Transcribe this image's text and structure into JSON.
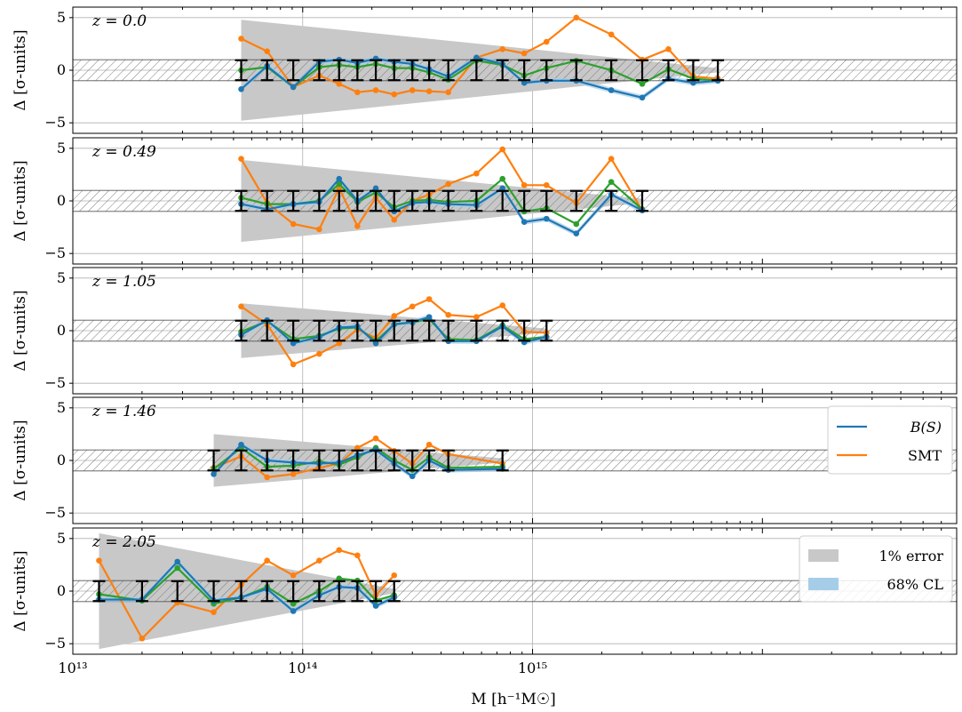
{
  "chart_data": {
    "type": "line",
    "x_axis": {
      "label": "M [h⁻¹M☉]",
      "scale": "log",
      "xlim": [
        10000000000000,
        70000000000000000
      ],
      "tick_labels": [
        "10¹³",
        "10¹⁴",
        "10¹⁵"
      ],
      "tick_values": [
        10000000000000,
        100000000000000,
        1000000000000000
      ]
    },
    "y_axis": {
      "label": "Δ [σ-units]",
      "ylim": [
        -6,
        6
      ],
      "tick_labels": [
        "−5",
        "0",
        "5"
      ],
      "tick_values": [
        -5,
        0,
        5
      ]
    },
    "band_hatched": [
      -1,
      1
    ],
    "grid": true,
    "colors": {
      "blue": "#1f77b4",
      "orange": "#ff7f0e",
      "green": "#2ca02c",
      "gray": "#c8c8c8",
      "lightblue": "#a6cde8"
    },
    "legend_lines": [
      {
        "label": "B(S)",
        "color": "#1f77b4"
      },
      {
        "label": "SMT",
        "color": "#ff7f0e"
      }
    ],
    "legend_patches": [
      {
        "label": "1% error",
        "color": "#c8c8c8"
      },
      {
        "label": "68% CL",
        "color": "#a6cde8"
      }
    ],
    "panels": [
      {
        "z_label": "z = 0.0",
        "x": [
          54000000000000.0,
          70000000000000.0,
          91000000000000.0,
          118000000000000.0,
          144000000000000.0,
          173000000000000.0,
          208000000000000.0,
          250000000000000.0,
          300000000000000.0,
          355000000000000.0,
          430000000000000.0,
          570000000000000.0,
          740000000000000.0,
          920000000000000.0,
          1150000000000000.0,
          1550000000000000.0,
          2200000000000000.0,
          3000000000000000.0,
          3900000000000000.0,
          5000000000000000.0,
          6400000000000000.0
        ],
        "blue": [
          -1.8,
          0.4,
          -1.6,
          0.8,
          1.0,
          0.7,
          1.1,
          0.8,
          0.6,
          0.1,
          -0.6,
          1.2,
          0.6,
          -1.2,
          -1.0,
          -1.0,
          -1.9,
          -2.6,
          -0.8,
          -1.2,
          -1.0
        ],
        "green": [
          0.0,
          0.3,
          -1.6,
          0.3,
          0.5,
          0.3,
          0.6,
          0.2,
          0.2,
          -0.2,
          -0.9,
          0.9,
          0.5,
          -0.5,
          0.2,
          0.9,
          0.0,
          -1.3,
          0.1,
          -0.8,
          -1.0
        ],
        "orange": [
          3.0,
          1.8,
          -1.6,
          -0.5,
          -1.3,
          -2.1,
          -1.9,
          -2.3,
          -1.9,
          -2.0,
          -2.1,
          1.2,
          2.0,
          1.6,
          2.7,
          5.0,
          3.4,
          1.0,
          2.0,
          -0.6,
          -0.8
        ],
        "err_x": [
          54000000000000.0,
          70000000000000.0,
          91000000000000.0,
          118000000000000.0,
          144000000000000.0,
          173000000000000.0,
          208000000000000.0,
          250000000000000.0,
          300000000000000.0,
          355000000000000.0,
          430000000000000.0,
          570000000000000.0,
          740000000000000.0,
          920000000000000.0,
          1150000000000000.0,
          1550000000000000.0,
          2200000000000000.0,
          3000000000000000.0,
          3900000000000000.0,
          5000000000000000.0,
          6400000000000000.0
        ],
        "err_center": [
          0,
          0,
          0,
          0,
          0,
          0,
          0,
          0,
          0,
          0,
          0,
          0,
          0,
          0,
          0,
          0,
          0,
          0,
          0,
          0,
          0
        ],
        "err_half": 0.95,
        "gray_band": {
          "x_start": 54000000000000.0,
          "x_end": 6400000000000000.0,
          "start_half": 4.8,
          "end_half": 0.2
        },
        "show_legend_lines": false,
        "show_legend_patches": false
      },
      {
        "z_label": "z = 0.49",
        "x": [
          54000000000000.0,
          70000000000000.0,
          91000000000000.0,
          118000000000000.0,
          144000000000000.0,
          173000000000000.0,
          208000000000000.0,
          250000000000000.0,
          300000000000000.0,
          355000000000000.0,
          430000000000000.0,
          570000000000000.0,
          740000000000000.0,
          920000000000000.0,
          1150000000000000.0,
          1550000000000000.0,
          2200000000000000.0,
          3000000000000000.0
        ],
        "blue": [
          -0.3,
          -0.8,
          -0.3,
          -0.1,
          2.1,
          0.0,
          1.2,
          -1.0,
          -0.2,
          -0.1,
          -0.3,
          -0.4,
          1.2,
          -2.0,
          -1.7,
          -3.1,
          0.6,
          -0.9
        ],
        "green": [
          0.3,
          -0.3,
          -0.3,
          0.0,
          1.6,
          -0.1,
          0.8,
          -0.6,
          0.0,
          0.1,
          -0.1,
          0.0,
          2.1,
          -1.0,
          -0.7,
          -2.2,
          1.8,
          -0.8
        ],
        "orange": [
          4.0,
          -0.2,
          -2.2,
          -2.7,
          1.2,
          -2.4,
          0.3,
          -1.8,
          0.0,
          0.6,
          1.6,
          2.6,
          4.9,
          1.5,
          1.5,
          -0.2,
          4.0,
          -0.9
        ],
        "err_x": [
          54000000000000.0,
          70000000000000.0,
          91000000000000.0,
          118000000000000.0,
          144000000000000.0,
          173000000000000.0,
          208000000000000.0,
          250000000000000.0,
          300000000000000.0,
          355000000000000.0,
          430000000000000.0,
          570000000000000.0,
          740000000000000.0,
          920000000000000.0,
          1150000000000000.0,
          1550000000000000.0,
          2200000000000000.0,
          3000000000000000.0
        ],
        "err_center": [
          0,
          0,
          0,
          0,
          0,
          0,
          0,
          0,
          0,
          0,
          0,
          0,
          0,
          0,
          0,
          0,
          0,
          0
        ],
        "err_half": 0.95,
        "gray_band": {
          "x_start": 54000000000000.0,
          "x_end": 3000000000000000.0,
          "start_half": 3.9,
          "end_half": 0.2
        },
        "show_legend_lines": false,
        "show_legend_patches": false
      },
      {
        "z_label": "z = 1.05",
        "x": [
          54000000000000.0,
          70000000000000.0,
          91000000000000.0,
          118000000000000.0,
          144000000000000.0,
          173000000000000.0,
          208000000000000.0,
          250000000000000.0,
          300000000000000.0,
          355000000000000.0,
          430000000000000.0,
          570000000000000.0,
          740000000000000.0,
          920000000000000.0,
          1150000000000000.0
        ],
        "blue": [
          -0.4,
          1.0,
          -1.2,
          -0.6,
          0.3,
          0.4,
          -1.2,
          0.6,
          0.8,
          1.3,
          -1.0,
          -1.0,
          0.4,
          -1.1,
          -0.6
        ],
        "green": [
          -0.1,
          0.9,
          -0.8,
          -0.5,
          0.2,
          0.3,
          -1.0,
          0.6,
          0.8,
          1.1,
          -0.8,
          -0.9,
          0.5,
          -0.8,
          -0.6
        ],
        "orange": [
          2.3,
          0.6,
          -3.2,
          -2.2,
          -1.2,
          0.1,
          -0.7,
          1.4,
          2.3,
          3.0,
          1.5,
          1.3,
          2.4,
          -0.1,
          -0.2
        ],
        "err_x": [
          54000000000000.0,
          70000000000000.0,
          91000000000000.0,
          118000000000000.0,
          144000000000000.0,
          173000000000000.0,
          208000000000000.0,
          250000000000000.0,
          300000000000000.0,
          355000000000000.0,
          430000000000000.0,
          570000000000000.0,
          740000000000000.0,
          920000000000000.0,
          1150000000000000.0
        ],
        "err_center": [
          0,
          0,
          0,
          0,
          0,
          0,
          0,
          0,
          0,
          0,
          0,
          0,
          0,
          0,
          0
        ],
        "err_half": 0.95,
        "gray_band": {
          "x_start": 54000000000000.0,
          "x_end": 1150000000000000.0,
          "start_half": 2.6,
          "end_half": 0.2
        },
        "show_legend_lines": false,
        "show_legend_patches": false
      },
      {
        "z_label": "z = 1.46",
        "x": [
          41000000000000.0,
          54000000000000.0,
          70000000000000.0,
          91000000000000.0,
          118000000000000.0,
          144000000000000.0,
          173000000000000.0,
          208000000000000.0,
          250000000000000.0,
          300000000000000.0,
          355000000000000.0,
          430000000000000.0,
          740000000000000.0
        ],
        "blue": [
          -1.3,
          1.5,
          0.0,
          -0.2,
          -0.3,
          -0.2,
          0.5,
          1.0,
          -0.3,
          -1.5,
          0.0,
          -0.9,
          -0.8
        ],
        "green": [
          -0.8,
          1.2,
          -0.6,
          -0.5,
          -0.1,
          -0.4,
          0.3,
          1.2,
          0.0,
          -0.9,
          0.3,
          -0.7,
          -0.6
        ],
        "orange": [
          -0.7,
          0.4,
          -1.6,
          -1.3,
          -0.7,
          -0.3,
          1.2,
          2.1,
          0.9,
          -0.3,
          1.5,
          0.6,
          -0.3
        ],
        "err_x": [
          41000000000000.0,
          54000000000000.0,
          70000000000000.0,
          91000000000000.0,
          118000000000000.0,
          144000000000000.0,
          173000000000000.0,
          208000000000000.0,
          250000000000000.0,
          300000000000000.0,
          355000000000000.0,
          430000000000000.0,
          740000000000000.0
        ],
        "err_center": [
          0,
          0,
          0,
          0,
          0,
          0,
          0,
          0,
          0,
          0,
          0,
          0,
          0
        ],
        "err_half": 0.95,
        "gray_band": {
          "x_start": 41000000000000.0,
          "x_end": 740000000000000.0,
          "start_half": 2.5,
          "end_half": 0.2
        },
        "show_legend_lines": true,
        "show_legend_patches": false
      },
      {
        "z_label": "z = 2.05",
        "x": [
          13000000000000.0,
          20000000000000.0,
          28500000000000.0,
          41000000000000.0,
          54000000000000.0,
          70000000000000.0,
          91000000000000.0,
          118000000000000.0,
          144000000000000.0,
          173000000000000.0,
          208000000000000.0,
          250000000000000.0
        ],
        "blue": [
          -0.8,
          -0.8,
          2.8,
          -0.9,
          -0.6,
          0.2,
          -1.9,
          -0.4,
          0.4,
          0.3,
          -1.4,
          -0.6
        ],
        "green": [
          -0.3,
          -0.9,
          2.2,
          -1.2,
          -0.6,
          0.4,
          -1.2,
          0.0,
          1.2,
          1.0,
          -0.9,
          -0.4
        ],
        "orange": [
          2.9,
          -4.5,
          -1.1,
          -2.0,
          0.6,
          2.9,
          1.5,
          2.9,
          3.9,
          3.4,
          -0.4,
          1.5
        ],
        "err_x": [
          13000000000000.0,
          20000000000000.0,
          28500000000000.0,
          41000000000000.0,
          54000000000000.0,
          70000000000000.0,
          91000000000000.0,
          118000000000000.0,
          144000000000000.0,
          173000000000000.0,
          208000000000000.0,
          250000000000000.0
        ],
        "err_center": [
          0,
          0,
          0,
          0,
          0,
          0,
          0,
          0,
          0,
          0,
          0,
          0
        ],
        "err_half": 0.95,
        "gray_band": {
          "x_start": 13000000000000.0,
          "x_end": 250000000000000.0,
          "start_half": 5.5,
          "end_half": 0.2
        },
        "show_legend_lines": false,
        "show_legend_patches": true
      }
    ]
  }
}
